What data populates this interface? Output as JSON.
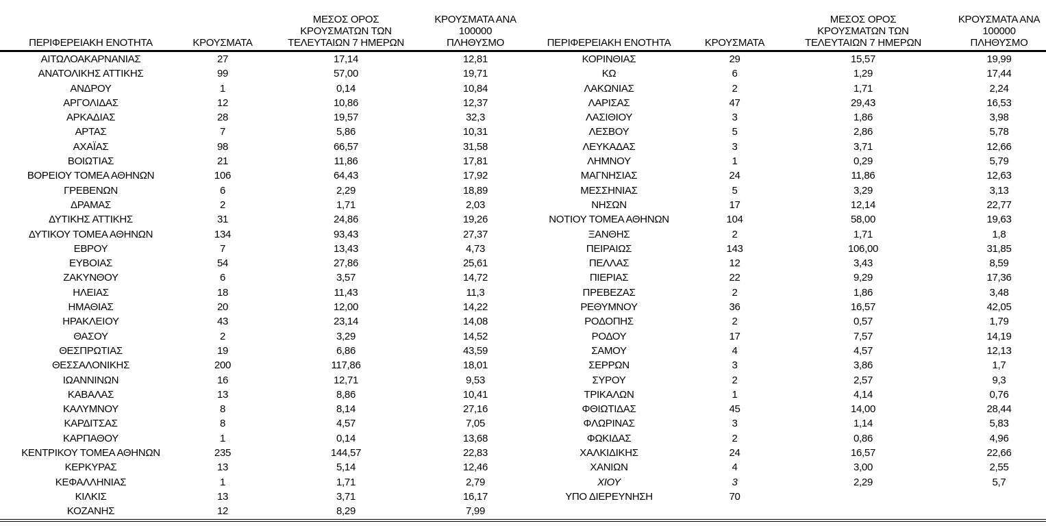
{
  "document": {
    "background": "#ffffff",
    "text_color": "#000000",
    "rule_color": "#000000"
  },
  "columns": {
    "region": "ΠΕΡΙΦΕΡΕΙΑΚΗ ΕΝΟΤΗΤΑ",
    "cases": "ΚΡΟΥΣΜΑΤΑ",
    "avg7": "ΜΕΣΟΣ ΟΡΟΣ\nΚΡΟΥΣΜΑΤΩΝ ΤΩΝ\nΤΕΛΕΥΤΑΙΩΝ 7 ΗΜΕΡΩΝ",
    "per100k": "ΚΡΟΥΣΜΑΤΑ ΑΝΑ\n100000 ΠΛΗΘΥΣΜΟ"
  },
  "left_rows": [
    {
      "region": "ΑΙΤΩΛΟΑΚΑΡΝΑΝΙΑΣ",
      "cases": "27",
      "avg7": "17,14",
      "per100k": "12,81"
    },
    {
      "region": "ΑΝΑΤΟΛΙΚΗΣ ΑΤΤΙΚΗΣ",
      "cases": "99",
      "avg7": "57,00",
      "per100k": "19,71"
    },
    {
      "region": "ΑΝΔΡΟΥ",
      "cases": "1",
      "avg7": "0,14",
      "per100k": "10,84"
    },
    {
      "region": "ΑΡΓΟΛΙΔΑΣ",
      "cases": "12",
      "avg7": "10,86",
      "per100k": "12,37"
    },
    {
      "region": "ΑΡΚΑΔΙΑΣ",
      "cases": "28",
      "avg7": "19,57",
      "per100k": "32,3"
    },
    {
      "region": "ΑΡΤΑΣ",
      "cases": "7",
      "avg7": "5,86",
      "per100k": "10,31"
    },
    {
      "region": "ΑΧΑΪΑΣ",
      "cases": "98",
      "avg7": "66,57",
      "per100k": "31,58"
    },
    {
      "region": "ΒΟΙΩΤΙΑΣ",
      "cases": "21",
      "avg7": "11,86",
      "per100k": "17,81"
    },
    {
      "region": "ΒΟΡΕΙΟΥ ΤΟΜΕΑ ΑΘΗΝΩΝ",
      "cases": "106",
      "avg7": "64,43",
      "per100k": "17,92"
    },
    {
      "region": "ΓΡΕΒΕΝΩΝ",
      "cases": "6",
      "avg7": "2,29",
      "per100k": "18,89"
    },
    {
      "region": "ΔΡΑΜΑΣ",
      "cases": "2",
      "avg7": "1,71",
      "per100k": "2,03"
    },
    {
      "region": "ΔΥΤΙΚΗΣ ΑΤΤΙΚΗΣ",
      "cases": "31",
      "avg7": "24,86",
      "per100k": "19,26"
    },
    {
      "region": "ΔΥΤΙΚΟΥ ΤΟΜΕΑ ΑΘΗΝΩΝ",
      "cases": "134",
      "avg7": "93,43",
      "per100k": "27,37"
    },
    {
      "region": "ΕΒΡΟΥ",
      "cases": "7",
      "avg7": "13,43",
      "per100k": "4,73"
    },
    {
      "region": "ΕΥΒΟΙΑΣ",
      "cases": "54",
      "avg7": "27,86",
      "per100k": "25,61"
    },
    {
      "region": "ΖΑΚΥΝΘΟΥ",
      "cases": "6",
      "avg7": "3,57",
      "per100k": "14,72"
    },
    {
      "region": "ΗΛΕΙΑΣ",
      "cases": "18",
      "avg7": "11,43",
      "per100k": "11,3"
    },
    {
      "region": "ΗΜΑΘΙΑΣ",
      "cases": "20",
      "avg7": "12,00",
      "per100k": "14,22"
    },
    {
      "region": "ΗΡΑΚΛΕΙΟΥ",
      "cases": "43",
      "avg7": "23,14",
      "per100k": "14,08"
    },
    {
      "region": "ΘΑΣΟΥ",
      "cases": "2",
      "avg7": "3,29",
      "per100k": "14,52"
    },
    {
      "region": "ΘΕΣΠΡΩΤΙΑΣ",
      "cases": "19",
      "avg7": "6,86",
      "per100k": "43,59"
    },
    {
      "region": "ΘΕΣΣΑΛΟΝΙΚΗΣ",
      "cases": "200",
      "avg7": "117,86",
      "per100k": "18,01"
    },
    {
      "region": "ΙΩΑΝΝΙΝΩΝ",
      "cases": "16",
      "avg7": "12,71",
      "per100k": "9,53"
    },
    {
      "region": "ΚΑΒΑΛΑΣ",
      "cases": "13",
      "avg7": "8,86",
      "per100k": "10,41"
    },
    {
      "region": "ΚΑΛΥΜΝΟΥ",
      "cases": "8",
      "avg7": "8,14",
      "per100k": "27,16"
    },
    {
      "region": "ΚΑΡΔΙΤΣΑΣ",
      "cases": "8",
      "avg7": "4,57",
      "per100k": "7,05"
    },
    {
      "region": "ΚΑΡΠΑΘΟΥ",
      "cases": "1",
      "avg7": "0,14",
      "per100k": "13,68"
    },
    {
      "region": "ΚΕΝΤΡΙΚΟΥ ΤΟΜΕΑ ΑΘΗΝΩΝ",
      "cases": "235",
      "avg7": "144,57",
      "per100k": "22,83"
    },
    {
      "region": "ΚΕΡΚΥΡΑΣ",
      "cases": "13",
      "avg7": "5,14",
      "per100k": "12,46"
    },
    {
      "region": "ΚΕΦΑΛΛΗΝΙΑΣ",
      "cases": "1",
      "avg7": "1,71",
      "per100k": "2,79"
    },
    {
      "region": "ΚΙΛΚΙΣ",
      "cases": "13",
      "avg7": "3,71",
      "per100k": "16,17"
    },
    {
      "region": "ΚΟΖΑΝΗΣ",
      "cases": "12",
      "avg7": "8,29",
      "per100k": "7,99"
    }
  ],
  "right_rows": [
    {
      "region": "ΚΟΡΙΝΘΙΑΣ",
      "cases": "29",
      "avg7": "15,57",
      "per100k": "19,99"
    },
    {
      "region": "ΚΩ",
      "cases": "6",
      "avg7": "1,29",
      "per100k": "17,44"
    },
    {
      "region": "ΛΑΚΩΝΙΑΣ",
      "cases": "2",
      "avg7": "1,71",
      "per100k": "2,24"
    },
    {
      "region": "ΛΑΡΙΣΑΣ",
      "cases": "47",
      "avg7": "29,43",
      "per100k": "16,53"
    },
    {
      "region": "ΛΑΣΙΘΙΟΥ",
      "cases": "3",
      "avg7": "1,86",
      "per100k": "3,98"
    },
    {
      "region": "ΛΕΣΒΟΥ",
      "cases": "5",
      "avg7": "2,86",
      "per100k": "5,78"
    },
    {
      "region": "ΛΕΥΚΑΔΑΣ",
      "cases": "3",
      "avg7": "3,71",
      "per100k": "12,66"
    },
    {
      "region": "ΛΗΜΝΟΥ",
      "cases": "1",
      "avg7": "0,29",
      "per100k": "5,79"
    },
    {
      "region": "ΜΑΓΝΗΣΙΑΣ",
      "cases": "24",
      "avg7": "11,86",
      "per100k": "12,63"
    },
    {
      "region": "ΜΕΣΣΗΝΙΑΣ",
      "cases": "5",
      "avg7": "3,29",
      "per100k": "3,13"
    },
    {
      "region": "ΝΗΣΩΝ",
      "cases": "17",
      "avg7": "12,14",
      "per100k": "22,77"
    },
    {
      "region": "ΝΟΤΙΟΥ ΤΟΜΕΑ ΑΘΗΝΩΝ",
      "cases": "104",
      "avg7": "58,00",
      "per100k": "19,63"
    },
    {
      "region": "ΞΑΝΘΗΣ",
      "cases": "2",
      "avg7": "1,71",
      "per100k": "1,8"
    },
    {
      "region": "ΠΕΙΡΑΙΩΣ",
      "cases": "143",
      "avg7": "106,00",
      "per100k": "31,85"
    },
    {
      "region": "ΠΕΛΛΑΣ",
      "cases": "12",
      "avg7": "3,43",
      "per100k": "8,59"
    },
    {
      "region": "ΠΙΕΡΙΑΣ",
      "cases": "22",
      "avg7": "9,29",
      "per100k": "17,36"
    },
    {
      "region": "ΠΡΕΒΕΖΑΣ",
      "cases": "2",
      "avg7": "1,86",
      "per100k": "3,48"
    },
    {
      "region": "ΡΕΘΥΜΝΟΥ",
      "cases": "36",
      "avg7": "16,57",
      "per100k": "42,05"
    },
    {
      "region": "ΡΟΔΟΠΗΣ",
      "cases": "2",
      "avg7": "0,57",
      "per100k": "1,79"
    },
    {
      "region": "ΡΟΔΟΥ",
      "cases": "17",
      "avg7": "7,57",
      "per100k": "14,19"
    },
    {
      "region": "ΣΑΜΟΥ",
      "cases": "4",
      "avg7": "4,57",
      "per100k": "12,13"
    },
    {
      "region": "ΣΕΡΡΩΝ",
      "cases": "3",
      "avg7": "3,86",
      "per100k": "1,7"
    },
    {
      "region": "ΣΥΡΟΥ",
      "cases": "2",
      "avg7": "2,57",
      "per100k": "9,3"
    },
    {
      "region": "ΤΡΙΚΑΛΩΝ",
      "cases": "1",
      "avg7": "4,14",
      "per100k": "0,76"
    },
    {
      "region": "ΦΘΙΩΤΙΔΑΣ",
      "cases": "45",
      "avg7": "14,00",
      "per100k": "28,44"
    },
    {
      "region": "ΦΛΩΡΙΝΑΣ",
      "cases": "3",
      "avg7": "1,14",
      "per100k": "5,83"
    },
    {
      "region": "ΦΩΚΙΔΑΣ",
      "cases": "2",
      "avg7": "0,86",
      "per100k": "4,96"
    },
    {
      "region": "ΧΑΛΚΙΔΙΚΗΣ",
      "cases": "24",
      "avg7": "16,57",
      "per100k": "22,66"
    },
    {
      "region": "ΧΑΝΙΩΝ",
      "cases": "4",
      "avg7": "3,00",
      "per100k": "2,55"
    },
    {
      "region": "ΧΙΟΥ",
      "cases": "3",
      "avg7": "2,29",
      "per100k": "5,7",
      "italic": true
    },
    {
      "region": "ΥΠΟ ΔΙΕΡΕΥΝΗΣΗ",
      "cases": "70",
      "avg7": "",
      "per100k": ""
    }
  ]
}
